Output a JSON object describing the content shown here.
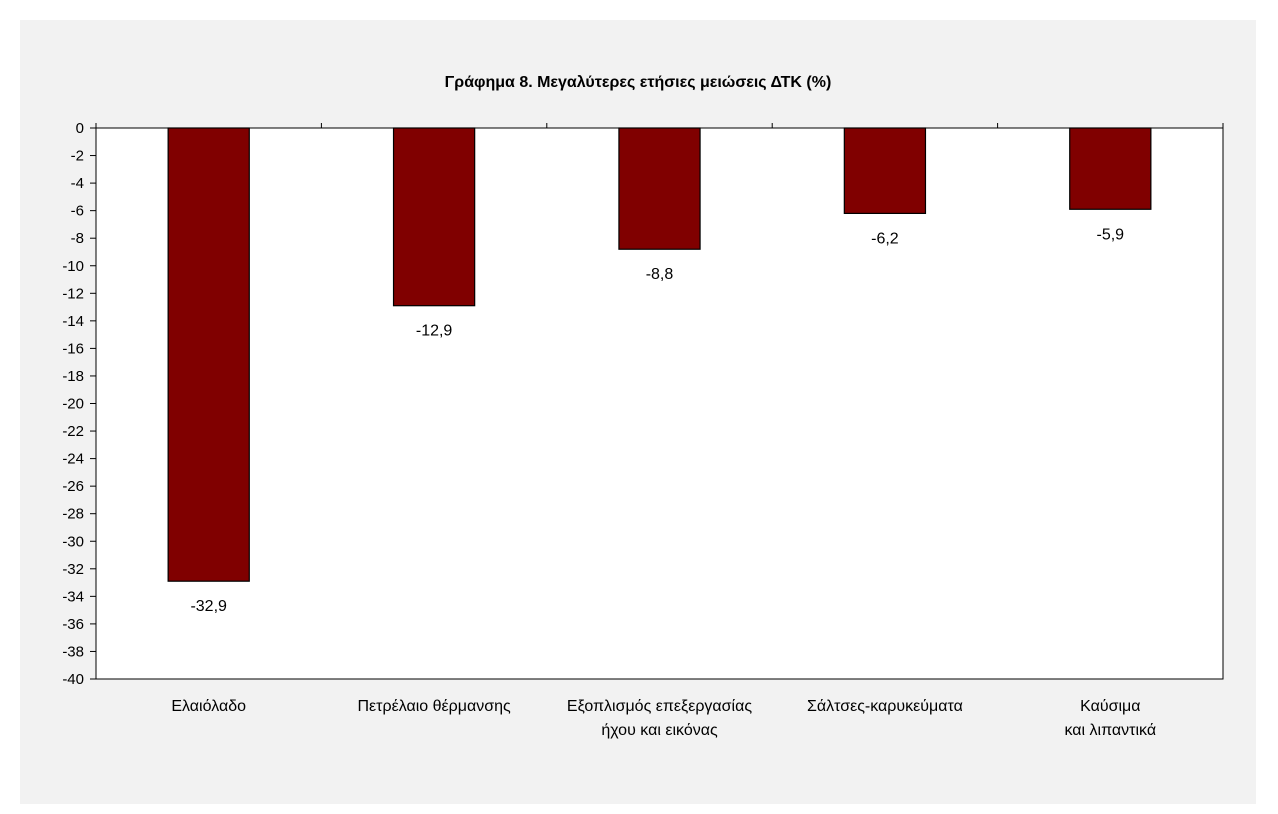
{
  "chart_data": {
    "type": "bar",
    "title": "Γράφημα 8. Μεγαλύτερες ετήσιες μειώσεις ΔΤΚ (%)",
    "xlabel": "",
    "ylabel": "",
    "categories": [
      [
        "Ελαιόλαδο"
      ],
      [
        "Πετρέλαιο θέρμανσης"
      ],
      [
        "Εξοπλισμός επεξεργασίας",
        "ήχου και εικόνας"
      ],
      [
        "Σάλτσες-καρυκεύματα"
      ],
      [
        "Καύσιμα",
        "και λιπαντικά"
      ]
    ],
    "values": [
      -32.9,
      -12.9,
      -8.8,
      -6.2,
      -5.9
    ],
    "value_labels": [
      "-32,9",
      "-12,9",
      "-8,8",
      "-6,2",
      "-5,9"
    ],
    "ylim": [
      -40,
      0
    ],
    "yticks": [
      0,
      -2,
      -4,
      -6,
      -8,
      -10,
      -12,
      -14,
      -16,
      -18,
      -20,
      -22,
      -24,
      -26,
      -28,
      -30,
      -32,
      -34,
      -36,
      -38,
      -40
    ],
    "grid": false,
    "legend": "none",
    "bar_color": "#800000",
    "bar_border_color": "#000000",
    "panel_color": "#f2f2f2",
    "plot_background": "#ffffff"
  }
}
